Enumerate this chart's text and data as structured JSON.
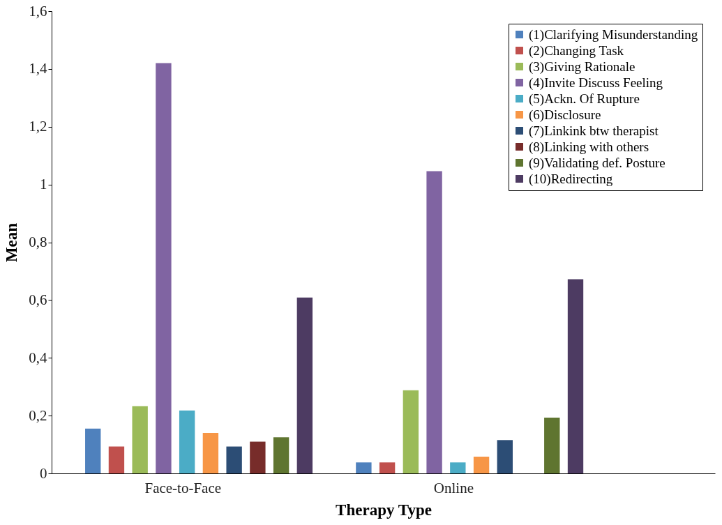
{
  "chart_data": {
    "type": "bar",
    "xlabel": "Therapy Type",
    "ylabel": "Mean",
    "categories": [
      "Face-to-Face",
      "Online"
    ],
    "series": [
      {
        "name": "(1)Clarifying Misunderstanding",
        "color": "#4f81bd",
        "values": [
          0.155,
          0.038
        ]
      },
      {
        "name": "(2)Changing Task",
        "color": "#c0504d",
        "values": [
          0.093,
          0.038
        ]
      },
      {
        "name": "(3)Giving Rationale",
        "color": "#9bbb59",
        "values": [
          0.233,
          0.288
        ]
      },
      {
        "name": "(4)Invite Discuss Feeling",
        "color": "#8064a2",
        "values": [
          1.42,
          1.046
        ]
      },
      {
        "name": "(5)Ackn. Of Rupture",
        "color": "#4bacc6",
        "values": [
          0.218,
          0.038
        ]
      },
      {
        "name": "(6)Disclosure",
        "color": "#f79646",
        "values": [
          0.14,
          0.058
        ]
      },
      {
        "name": "(7)Linkink btw therapist",
        "color": "#2c4d75",
        "values": [
          0.093,
          0.115
        ]
      },
      {
        "name": "(8)Linking with others",
        "color": "#772c2a",
        "values": [
          0.11,
          0
        ]
      },
      {
        "name": "(9)Validating def. Posture",
        "color": "#5f7530",
        "values": [
          0.125,
          0.193
        ]
      },
      {
        "name": "(10)Redirecting",
        "color": "#4d3b62",
        "values": [
          0.609,
          0.672
        ]
      }
    ],
    "ylim": [
      0,
      1.6
    ],
    "yticks": [
      0,
      {
        "value": 0.2,
        "label": "0,2"
      },
      {
        "value": 0.4,
        "label": "0,4"
      },
      {
        "value": 0.6,
        "label": "0,6"
      },
      {
        "value": 0.8,
        "label": "0,8"
      },
      1,
      {
        "value": 1.2,
        "label": "1,2"
      },
      {
        "value": 1.4,
        "label": "1,4"
      },
      {
        "value": 1.6,
        "label": "1,6"
      }
    ],
    "grid": false,
    "legend": "top right"
  }
}
